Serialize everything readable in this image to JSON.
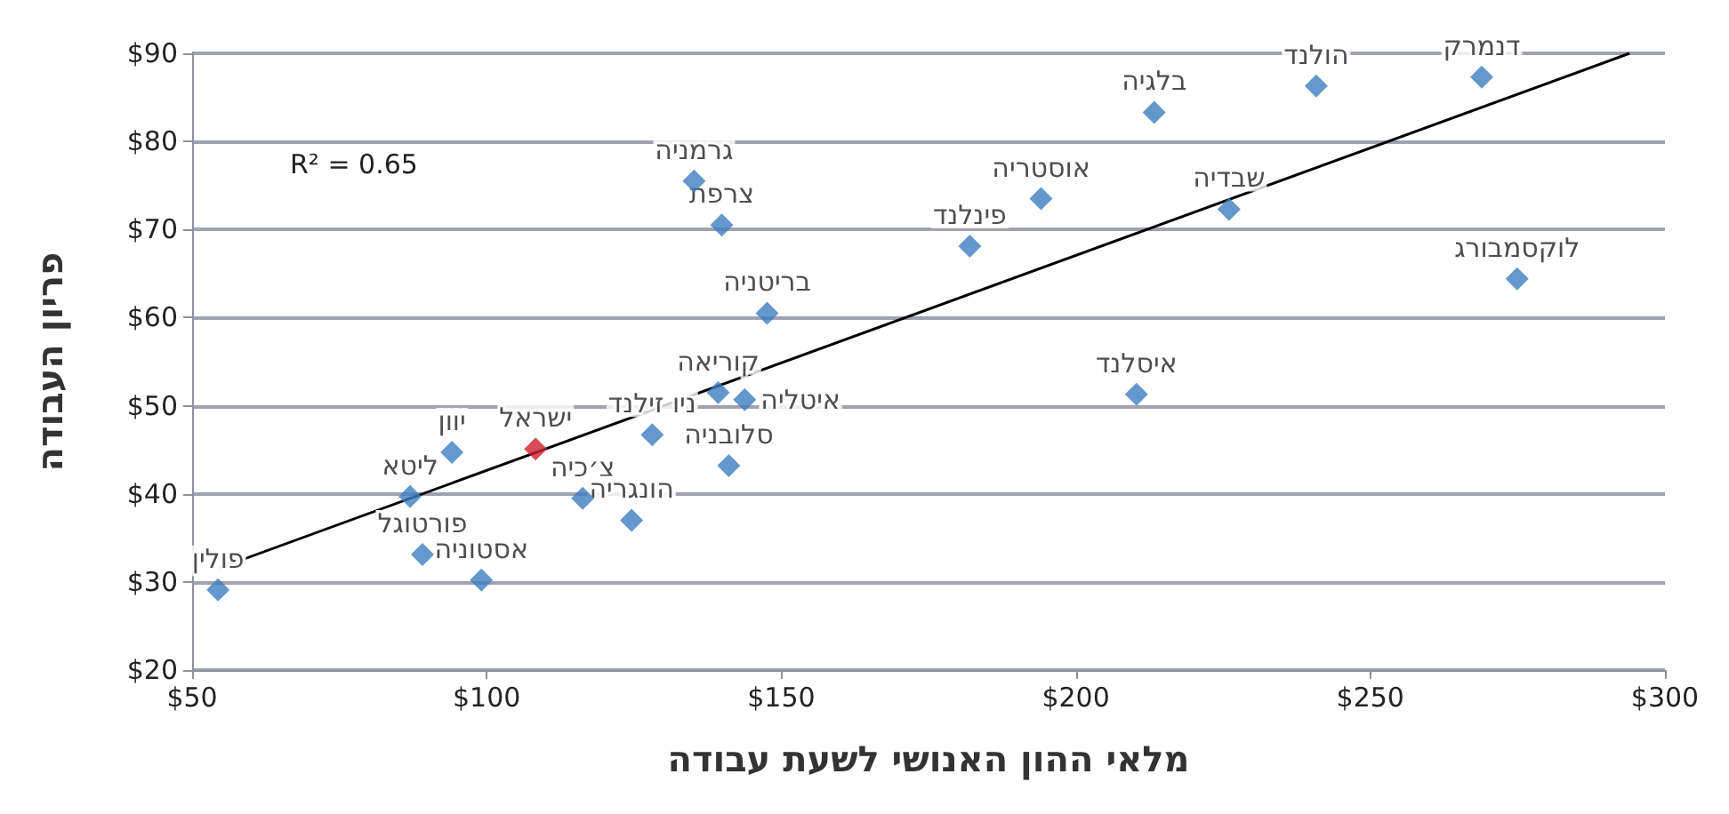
{
  "chart_data": {
    "type": "scatter",
    "xlabel": "מלאי ההון האנושי לשעת עבודה",
    "ylabel": "פריון העבודה",
    "x": [
      54.4,
      89.1,
      99.1,
      87.0,
      94.1,
      108.3,
      116.3,
      124.6,
      128.1,
      141.1,
      139.3,
      143.8,
      147.6,
      139.9,
      135.2,
      182.0,
      194.1,
      213.3,
      240.8,
      268.9,
      226.0,
      210.3,
      274.9
    ],
    "series": [
      {
        "color": "#3d7ebf",
        "values": [
          29.1,
          33.1,
          30.2,
          39.7,
          44.7,
          45.1,
          39.5,
          37.0,
          46.7,
          43.2,
          51.5,
          50.7,
          60.5,
          70.5,
          75.5,
          68.1,
          73.5,
          83.3,
          86.3,
          87.3,
          72.3,
          51.3,
          64.4
        ],
        "colors": [
          "#3d7ebf",
          "#3d7ebf",
          "#3d7ebf",
          "#3d7ebf",
          "#3d7ebf",
          "#d0202e",
          "#3d7ebf",
          "#3d7ebf",
          "#3d7ebf",
          "#3d7ebf",
          "#3d7ebf",
          "#3d7ebf",
          "#3d7ebf",
          "#3d7ebf",
          "#3d7ebf",
          "#3d7ebf",
          "#3d7ebf",
          "#3d7ebf",
          "#3d7ebf",
          "#3d7ebf",
          "#3d7ebf",
          "#3d7ebf",
          "#3d7ebf"
        ]
      },
      {
        "type": "line",
        "color": "#000000",
        "x": [
          54.7,
          294
        ],
        "values": [
          31.6,
          90
        ],
        "marker": "none"
      }
    ],
    "annotations": [
      "R² = 0.65",
      {
        "text": "פולין",
        "x": 54.4,
        "y": 29.1
      },
      {
        "text": "פורטוגל",
        "x": 89.1,
        "y": 33.1
      },
      {
        "text": "אסטוניה",
        "x": 99.1,
        "y": 30.2
      },
      {
        "text": "ליטא",
        "x": 87.0,
        "y": 39.7
      },
      {
        "text": "יוון",
        "x": 94.1,
        "y": 44.7
      },
      {
        "text": "ישראל",
        "x": 108.3,
        "y": 45.1
      },
      {
        "text": "צ׳כיה",
        "x": 116.3,
        "y": 39.5
      },
      {
        "text": "הונגריה",
        "x": 124.6,
        "y": 37.0
      },
      {
        "text": "ניו זילנד",
        "x": 128.1,
        "y": 46.7
      },
      {
        "text": "סלובניה",
        "x": 141.1,
        "y": 43.2
      },
      {
        "text": "קוריאה",
        "x": 139.3,
        "y": 51.5
      },
      {
        "text": "איטליה",
        "x": 143.8,
        "y": 50.7
      },
      {
        "text": "בריטניה",
        "x": 147.6,
        "y": 60.5
      },
      {
        "text": "צרפת",
        "x": 139.9,
        "y": 70.5
      },
      {
        "text": "גרמניה",
        "x": 135.2,
        "y": 75.5
      },
      {
        "text": "פינלנד",
        "x": 182.0,
        "y": 68.1
      },
      {
        "text": "אוסטריה",
        "x": 194.1,
        "y": 73.5
      },
      {
        "text": "בלגיה",
        "x": 213.3,
        "y": 83.3
      },
      {
        "text": "הולנד",
        "x": 240.8,
        "y": 86.3
      },
      {
        "text": "דנמרק",
        "x": 268.9,
        "y": 87.3
      },
      {
        "text": "שבדיה",
        "x": 226.0,
        "y": 72.3
      },
      {
        "text": "איסלנד",
        "x": 210.3,
        "y": 51.3
      },
      {
        "text": "לוקסמבורג",
        "x": 274.9,
        "y": 64.4
      }
    ],
    "xlim": [
      50,
      300
    ],
    "xticks": [
      {
        "value": 50,
        "label": "$50"
      },
      {
        "value": 100,
        "label": "$100"
      },
      {
        "value": 150,
        "label": "$150"
      },
      {
        "value": 200,
        "label": "$200"
      },
      {
        "value": 250,
        "label": "$250"
      },
      {
        "value": 300,
        "label": "$300"
      }
    ],
    "ylim": [
      20,
      90
    ],
    "yticks": [
      {
        "value": 20,
        "label": "$20"
      },
      {
        "value": 30,
        "label": "$30"
      },
      {
        "value": 40,
        "label": "$40"
      },
      {
        "value": 50,
        "label": "$50"
      },
      {
        "value": 60,
        "label": "$60"
      },
      {
        "value": 70,
        "label": "$70"
      },
      {
        "value": 80,
        "label": "$80"
      },
      {
        "value": 90,
        "label": "$90"
      }
    ],
    "grid": "y",
    "marker": "diamond"
  }
}
